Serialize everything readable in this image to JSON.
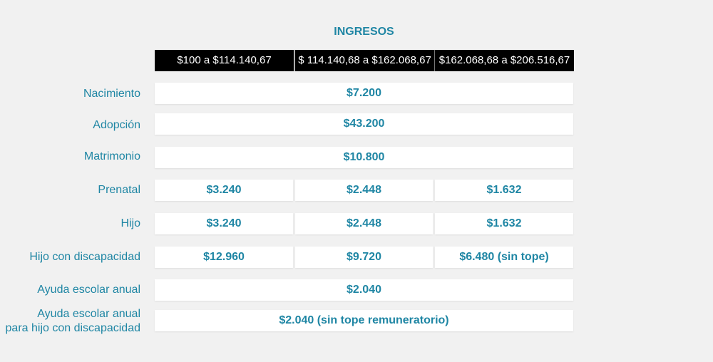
{
  "title": "INGRESOS",
  "headers": [
    "$100 a $114.140,67",
    "$ 114.140,68 a $162.068,67",
    "$162.068,68 a $206.516,67"
  ],
  "rows": [
    {
      "label": "Nacimiento",
      "value": "$7.200"
    },
    {
      "label": "Adopción",
      "value": "$43.200"
    },
    {
      "label": "Matrimonio",
      "value": "$10.800"
    },
    {
      "label": "Prenatal",
      "values": [
        "$3.240",
        "$2.448",
        "$1.632"
      ]
    },
    {
      "label": "Hijo",
      "values": [
        "$3.240",
        "$2.448",
        "$1.632"
      ]
    },
    {
      "label": "Hijo con discapacidad",
      "values": [
        "$12.960",
        "$9.720",
        "$6.480  (sin tope)"
      ]
    },
    {
      "label": "Ayuda escolar anual",
      "value": "$2.040"
    },
    {
      "label_line1": "Ayuda escolar anual",
      "label_line2": "para hijo con discapacidad",
      "value": "$2.040 (sin tope remuneratorio)"
    }
  ],
  "colors": {
    "accent": "#1f86a4",
    "header_bg": "#000000",
    "background": "#f1f1f1"
  }
}
